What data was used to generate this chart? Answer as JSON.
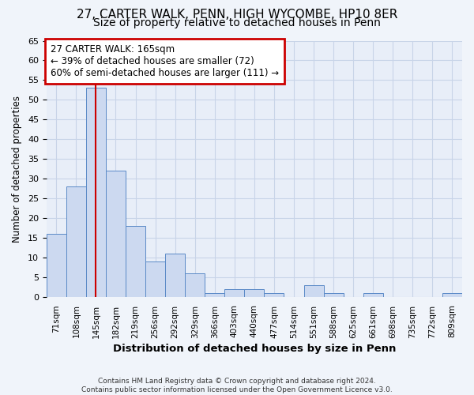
{
  "title1": "27, CARTER WALK, PENN, HIGH WYCOMBE, HP10 8ER",
  "title2": "Size of property relative to detached houses in Penn",
  "xlabel": "Distribution of detached houses by size in Penn",
  "ylabel": "Number of detached properties",
  "categories": [
    "71sqm",
    "108sqm",
    "145sqm",
    "182sqm",
    "219sqm",
    "256sqm",
    "292sqm",
    "329sqm",
    "366sqm",
    "403sqm",
    "440sqm",
    "477sqm",
    "514sqm",
    "551sqm",
    "588sqm",
    "625sqm",
    "661sqm",
    "698sqm",
    "735sqm",
    "772sqm",
    "809sqm"
  ],
  "values": [
    16,
    28,
    53,
    32,
    18,
    9,
    11,
    6,
    1,
    2,
    2,
    1,
    0,
    3,
    1,
    0,
    1,
    0,
    0,
    0,
    1
  ],
  "bar_color": "#ccd9f0",
  "bar_edge_color": "#5b8ac7",
  "vline_x_index": 2,
  "vline_color": "#cc0000",
  "ylim": [
    0,
    65
  ],
  "yticks": [
    0,
    5,
    10,
    15,
    20,
    25,
    30,
    35,
    40,
    45,
    50,
    55,
    60,
    65
  ],
  "annotation_title": "27 CARTER WALK: 165sqm",
  "annotation_line1": "← 39% of detached houses are smaller (72)",
  "annotation_line2": "60% of semi-detached houses are larger (111) →",
  "annotation_box_color": "#ffffff",
  "annotation_box_edge": "#cc0000",
  "footer1": "Contains HM Land Registry data © Crown copyright and database right 2024.",
  "footer2": "Contains public sector information licensed under the Open Government Licence v3.0.",
  "bg_color": "#f0f4fa",
  "plot_bg_color": "#e8eef8",
  "grid_color": "#c8d4e8",
  "title1_fontsize": 11,
  "title2_fontsize": 10,
  "bar_width": 1.0
}
